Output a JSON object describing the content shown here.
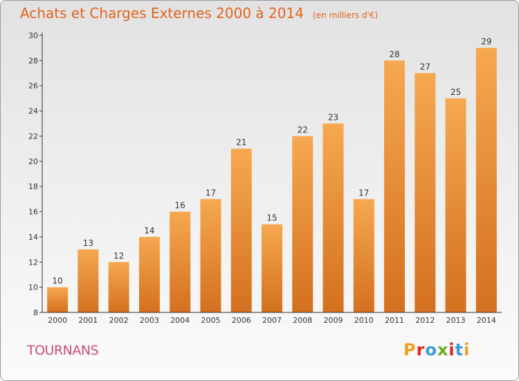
{
  "header": {
    "title": "Achats et Charges Externes 2000 à 2014",
    "unit": "(en milliers d'€)"
  },
  "footer": {
    "commune": "TOURNANS",
    "logo_letters": [
      "P",
      "r",
      "o",
      "x",
      "i",
      "t",
      "i"
    ],
    "logo_colors": [
      "#f0a020",
      "#e2231a",
      "#3b9bd8",
      "#6ab023",
      "#e2231a",
      "#3b9bd8",
      "#f0a020"
    ]
  },
  "colors": {
    "bar_light": "#f6a850",
    "bar_dark": "#d4701f",
    "title": "#e0641c",
    "commune": "#c8507c"
  },
  "chart_data": {
    "type": "bar",
    "title": "Achats et Charges Externes 2000 à 2014",
    "subtitle": "(en milliers d'€)",
    "categories": [
      "2000",
      "2001",
      "2002",
      "2003",
      "2004",
      "2005",
      "2006",
      "2007",
      "2008",
      "2009",
      "2010",
      "2011",
      "2012",
      "2013",
      "2014"
    ],
    "values": [
      10,
      13,
      12,
      14,
      16,
      17,
      21,
      15,
      22,
      23,
      17,
      28,
      27,
      25,
      29
    ],
    "ylim": [
      8,
      30
    ],
    "yticks": [
      8,
      10,
      12,
      14,
      16,
      18,
      20,
      22,
      24,
      26,
      28,
      30
    ],
    "grid": false,
    "data_labels": true
  }
}
